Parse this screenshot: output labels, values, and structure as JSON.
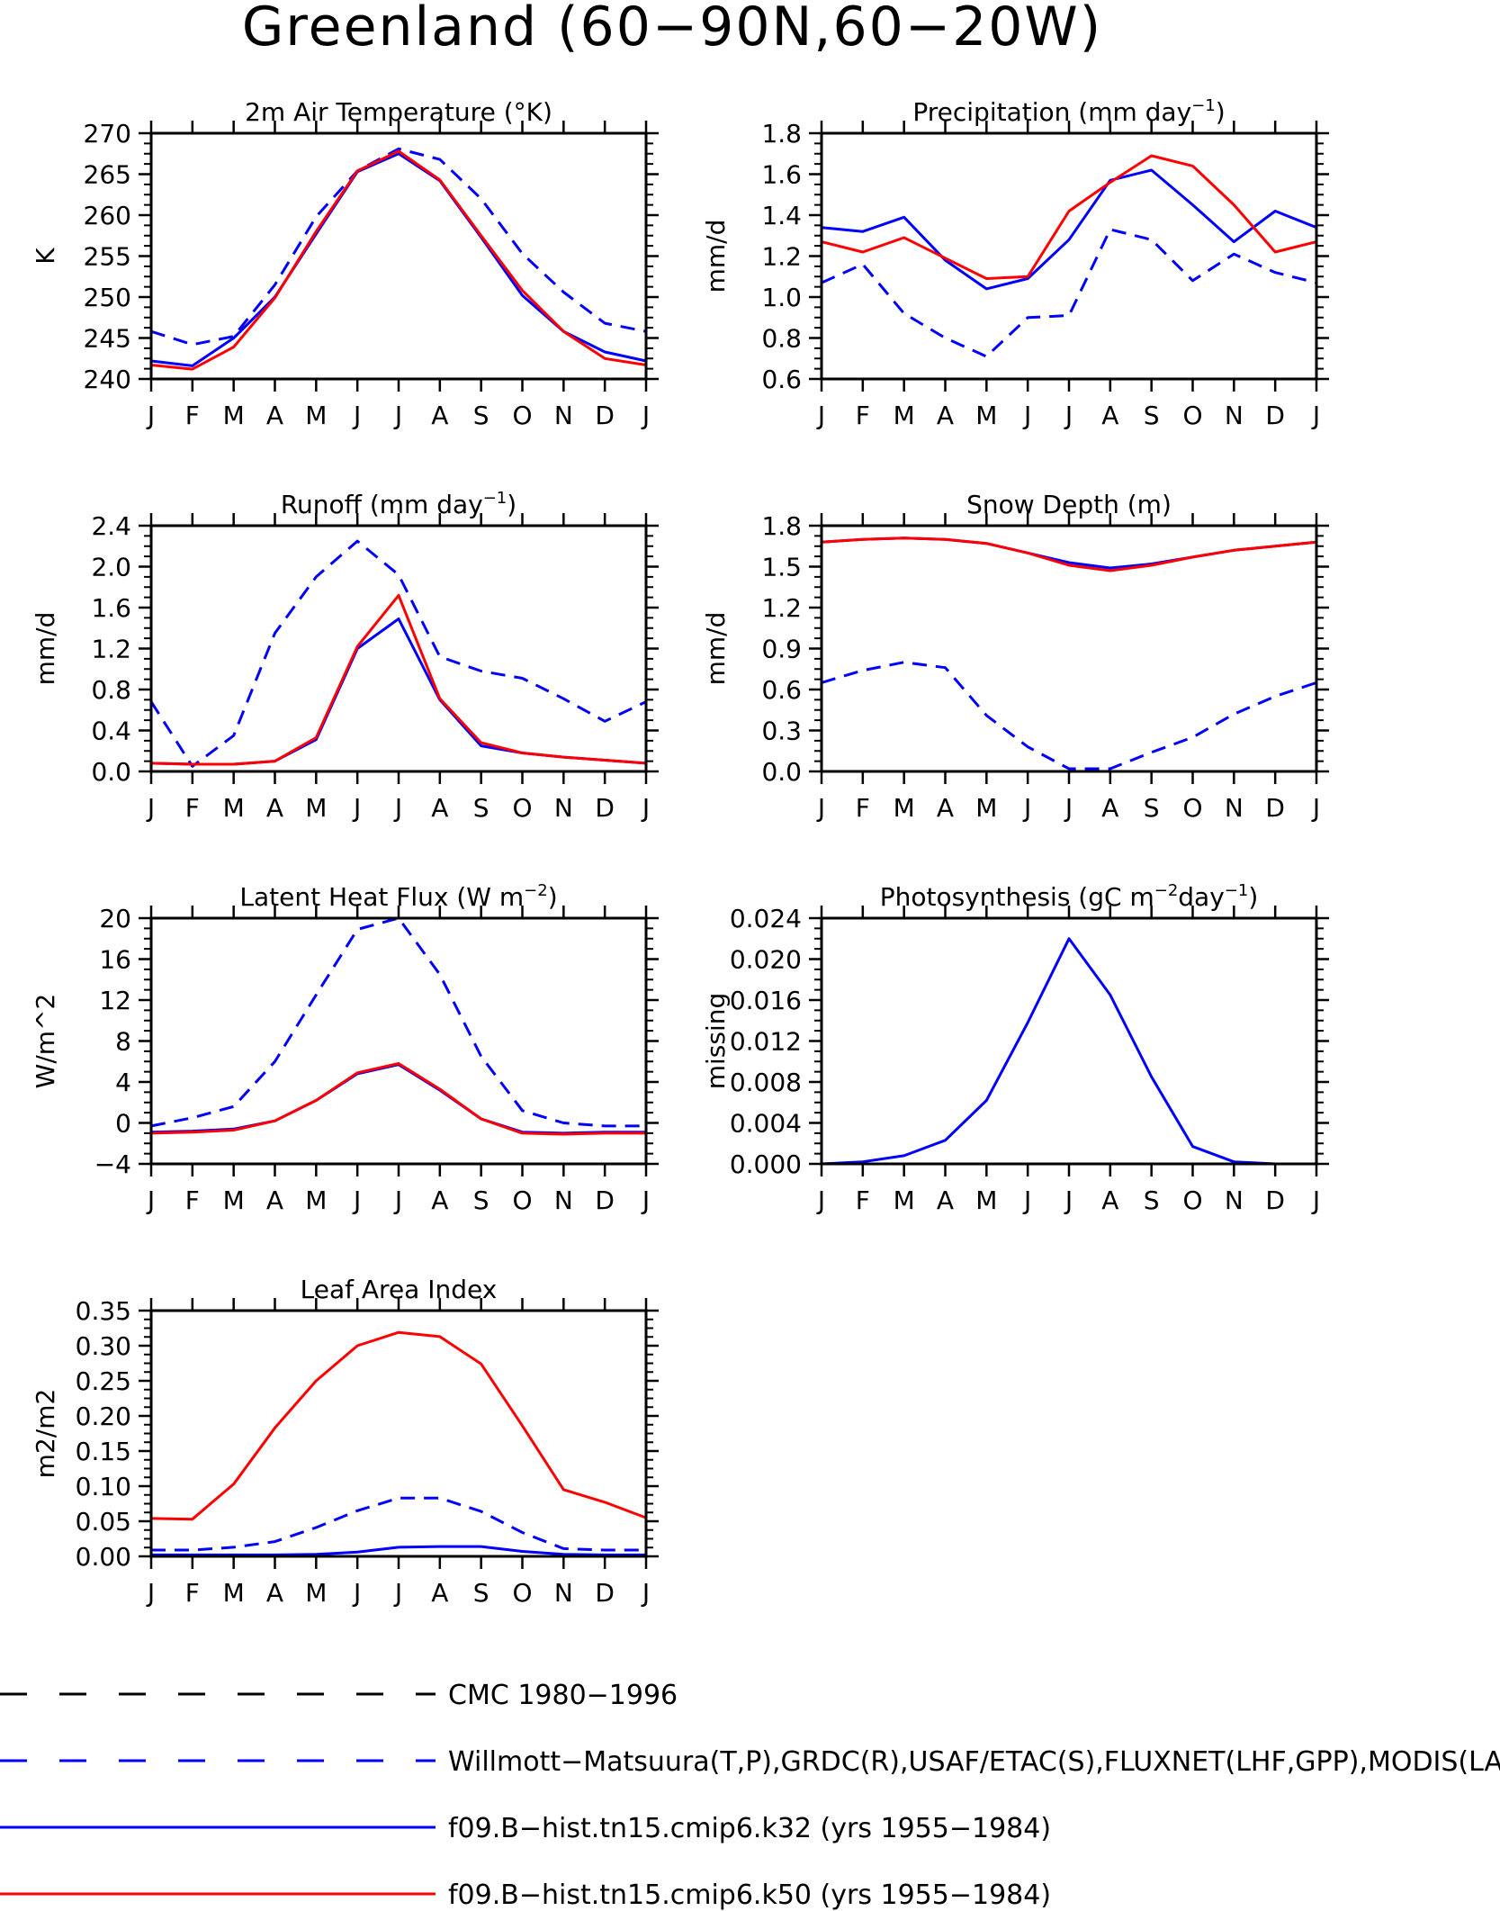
{
  "page_title": "Greenland (60−90N,60−20W)",
  "colors": {
    "obs_blue": "#0000ff",
    "model_k50": "#ff0000",
    "black": "#000000"
  },
  "month_labels": [
    "J",
    "F",
    "M",
    "A",
    "M",
    "J",
    "J",
    "A",
    "S",
    "O",
    "N",
    "D",
    "J"
  ],
  "chart_data": [
    {
      "id": "t2m",
      "type": "line",
      "title": "2m Air Temperature (°K)",
      "title_sup": "",
      "title_post": "",
      "ylabel": "K",
      "ylim": [
        240,
        270
      ],
      "yticks": [
        240,
        245,
        250,
        255,
        260,
        265,
        270
      ],
      "ytick_labels": [
        "240",
        "245",
        "250",
        "255",
        "260",
        "265",
        "270"
      ],
      "series": [
        {
          "name": "Willmott−Matsuura(T,P),GRDC(R),USAF/ETAC(S),FLUXNET(LHF,GPP),MODIS(LAI)",
          "style": "dashed",
          "color": "#0000ff",
          "values": [
            245.8,
            244.2,
            245.2,
            251.5,
            259.8,
            265.4,
            268.1,
            266.8,
            262.0,
            255.3,
            250.6,
            246.8,
            245.8
          ]
        },
        {
          "name": "f09.B−hist.tn15.cmip6.k32 (yrs 1955−1984)",
          "style": "solid",
          "color": "#0000ff",
          "values": [
            242.2,
            241.6,
            245.0,
            250.0,
            257.7,
            265.3,
            267.5,
            264.2,
            257.3,
            250.2,
            245.8,
            243.3,
            242.2
          ]
        },
        {
          "name": "f09.B−hist.tn15.cmip6.k50 (yrs 1955−1984)",
          "style": "solid",
          "color": "#ff0000",
          "values": [
            241.7,
            241.2,
            243.9,
            249.9,
            258.0,
            265.4,
            267.8,
            264.3,
            257.5,
            250.8,
            245.8,
            242.5,
            241.7
          ]
        }
      ]
    },
    {
      "id": "prec",
      "type": "line",
      "title": "Precipitation (mm day",
      "title_sup": "−1",
      "title_post": ")",
      "ylabel": "mm/d",
      "ylim": [
        0.6,
        1.8
      ],
      "yticks": [
        0.6,
        0.8,
        1.0,
        1.2,
        1.4,
        1.6,
        1.8
      ],
      "ytick_labels": [
        "0.6",
        "0.8",
        "1.0",
        "1.2",
        "1.4",
        "1.6",
        "1.8"
      ],
      "series": [
        {
          "name": "Willmott−Matsuura(T,P),GRDC(R),USAF/ETAC(S),FLUXNET(LHF,GPP),MODIS(LAI)",
          "style": "dashed",
          "color": "#0000ff",
          "values": [
            1.07,
            1.16,
            0.92,
            0.8,
            0.71,
            0.9,
            0.91,
            1.33,
            1.28,
            1.08,
            1.21,
            1.12,
            1.07
          ]
        },
        {
          "name": "f09.B−hist.tn15.cmip6.k32 (yrs 1955−1984)",
          "style": "solid",
          "color": "#0000ff",
          "values": [
            1.34,
            1.32,
            1.39,
            1.18,
            1.04,
            1.09,
            1.28,
            1.57,
            1.62,
            1.45,
            1.27,
            1.42,
            1.34
          ]
        },
        {
          "name": "f09.B−hist.tn15.cmip6.k50 (yrs 1955−1984)",
          "style": "solid",
          "color": "#ff0000",
          "values": [
            1.27,
            1.22,
            1.29,
            1.19,
            1.09,
            1.1,
            1.42,
            1.56,
            1.69,
            1.64,
            1.45,
            1.22,
            1.27
          ]
        }
      ]
    },
    {
      "id": "runoff",
      "type": "line",
      "title": "Runoff (mm day",
      "title_sup": "−1",
      "title_post": ")",
      "ylabel": "mm/d",
      "ylim": [
        0.0,
        2.4
      ],
      "yticks": [
        0.0,
        0.4,
        0.8,
        1.2,
        1.6,
        2.0,
        2.4
      ],
      "ytick_labels": [
        "0.0",
        "0.4",
        "0.8",
        "1.2",
        "1.6",
        "2.0",
        "2.4"
      ],
      "series": [
        {
          "name": "Willmott−Matsuura(T,P),GRDC(R),USAF/ETAC(S),FLUXNET(LHF,GPP),MODIS(LAI)",
          "style": "dashed",
          "color": "#0000ff",
          "values": [
            0.68,
            0.05,
            0.35,
            1.35,
            1.9,
            2.25,
            1.92,
            1.12,
            0.98,
            0.91,
            0.71,
            0.49,
            0.68
          ]
        },
        {
          "name": "f09.B−hist.tn15.cmip6.k32 (yrs 1955−1984)",
          "style": "solid",
          "color": "#0000ff",
          "values": [
            0.08,
            0.07,
            0.07,
            0.1,
            0.31,
            1.2,
            1.49,
            0.7,
            0.25,
            0.18,
            0.14,
            0.11,
            0.08
          ]
        },
        {
          "name": "f09.B−hist.tn15.cmip6.k50 (yrs 1955−1984)",
          "style": "solid",
          "color": "#ff0000",
          "values": [
            0.08,
            0.07,
            0.07,
            0.1,
            0.33,
            1.22,
            1.72,
            0.71,
            0.28,
            0.18,
            0.14,
            0.11,
            0.08
          ]
        }
      ]
    },
    {
      "id": "snow",
      "type": "line",
      "title": "Snow Depth (m)",
      "title_sup": "",
      "title_post": "",
      "ylabel": "mm/d",
      "ylim": [
        0.0,
        1.8
      ],
      "yticks": [
        0.0,
        0.3,
        0.6,
        0.9,
        1.2,
        1.5,
        1.8
      ],
      "ytick_labels": [
        "0.0",
        "0.3",
        "0.6",
        "0.9",
        "1.2",
        "1.5",
        "1.8"
      ],
      "series": [
        {
          "name": "CMC 1980−1996",
          "style": "dashed",
          "color": "#000000",
          "values": [
            0.0,
            0.0,
            0.0,
            0.0,
            0.0,
            0.0,
            0.0,
            0.0,
            0.0,
            0.0,
            0.0,
            0.0,
            0.0
          ]
        },
        {
          "name": "Willmott−Matsuura(T,P),GRDC(R),USAF/ETAC(S),FLUXNET(LHF,GPP),MODIS(LAI)",
          "style": "dashed",
          "color": "#0000ff",
          "values": [
            0.65,
            0.74,
            0.8,
            0.76,
            0.41,
            0.18,
            0.02,
            0.02,
            0.14,
            0.25,
            0.42,
            0.55,
            0.65
          ]
        },
        {
          "name": "f09.B−hist.tn15.cmip6.k32 (yrs 1955−1984)",
          "style": "solid",
          "color": "#0000ff",
          "values": [
            1.68,
            1.7,
            1.71,
            1.7,
            1.67,
            1.6,
            1.53,
            1.49,
            1.52,
            1.57,
            1.62,
            1.65,
            1.68
          ]
        },
        {
          "name": "f09.B−hist.tn15.cmip6.k50 (yrs 1955−1984)",
          "style": "solid",
          "color": "#ff0000",
          "values": [
            1.68,
            1.7,
            1.71,
            1.7,
            1.67,
            1.6,
            1.51,
            1.47,
            1.51,
            1.57,
            1.62,
            1.65,
            1.68
          ]
        }
      ]
    },
    {
      "id": "lhf",
      "type": "line",
      "title": "Latent Heat Flux (W m",
      "title_sup": "−2",
      "title_post": ")",
      "ylabel": "W/m^2",
      "ylim": [
        -4,
        20
      ],
      "yticks": [
        -4,
        0,
        4,
        8,
        12,
        16,
        20
      ],
      "ytick_labels": [
        "−4",
        "0",
        "4",
        "8",
        "12",
        "16",
        "20"
      ],
      "series": [
        {
          "name": "Willmott−Matsuura(T,P),GRDC(R),USAF/ETAC(S),FLUXNET(LHF,GPP),MODIS(LAI)",
          "style": "dashed",
          "color": "#0000ff",
          "values": [
            -0.3,
            0.5,
            1.6,
            6.0,
            12.5,
            18.9,
            20.0,
            14.5,
            6.5,
            1.2,
            0.0,
            -0.3,
            -0.3
          ]
        },
        {
          "name": "f09.B−hist.tn15.cmip6.k32 (yrs 1955−1984)",
          "style": "solid",
          "color": "#0000ff",
          "values": [
            -0.9,
            -0.8,
            -0.6,
            0.2,
            2.2,
            4.8,
            5.7,
            3.2,
            0.4,
            -0.9,
            -1.0,
            -0.9,
            -0.9
          ]
        },
        {
          "name": "f09.B−hist.tn15.cmip6.k50 (yrs 1955−1984)",
          "style": "solid",
          "color": "#ff0000",
          "values": [
            -1.0,
            -0.9,
            -0.7,
            0.2,
            2.2,
            4.9,
            5.8,
            3.3,
            0.4,
            -1.0,
            -1.1,
            -1.0,
            -1.0
          ]
        }
      ]
    },
    {
      "id": "gpp",
      "type": "line",
      "title": "Photosynthesis (gC m",
      "title_sup": "−2",
      "title_post": "day",
      "title_sup2": "−1",
      "title_post2": ")",
      "ylabel": "missing",
      "ylim": [
        0.0,
        0.024
      ],
      "yticks": [
        0.0,
        0.004,
        0.008,
        0.012,
        0.016,
        0.02,
        0.024
      ],
      "ytick_labels": [
        "0.000",
        "0.004",
        "0.008",
        "0.012",
        "0.016",
        "0.020",
        "0.024"
      ],
      "series": [
        {
          "name": "f09.B−hist.tn15.cmip6.k32 (yrs 1955−1984)",
          "style": "solid",
          "color": "#0000ff",
          "values": [
            0.0,
            0.0002,
            0.0008,
            0.0023,
            0.0062,
            0.0138,
            0.022,
            0.0165,
            0.0085,
            0.0017,
            0.0002,
            0.0,
            0.0
          ]
        }
      ]
    },
    {
      "id": "lai",
      "type": "line",
      "title": "Leaf Area Index",
      "title_sup": "",
      "title_post": "",
      "ylabel": "m2/m2",
      "ylim": [
        0.0,
        0.35
      ],
      "yticks": [
        0.0,
        0.05,
        0.1,
        0.15,
        0.2,
        0.25,
        0.3,
        0.35
      ],
      "ytick_labels": [
        "0.00",
        "0.05",
        "0.10",
        "0.15",
        "0.20",
        "0.25",
        "0.30",
        "0.35"
      ],
      "series": [
        {
          "name": "Willmott−Matsuura(T,P),GRDC(R),USAF/ETAC(S),FLUXNET(LHF,GPP),MODIS(LAI)",
          "style": "dashed",
          "color": "#0000ff",
          "values": [
            0.009,
            0.009,
            0.013,
            0.021,
            0.041,
            0.065,
            0.083,
            0.083,
            0.064,
            0.034,
            0.011,
            0.009,
            0.009
          ]
        },
        {
          "name": "f09.B−hist.tn15.cmip6.k32 (yrs 1955−1984)",
          "style": "solid",
          "color": "#0000ff",
          "values": [
            0.002,
            0.002,
            0.002,
            0.002,
            0.003,
            0.006,
            0.013,
            0.014,
            0.014,
            0.007,
            0.003,
            0.002,
            0.002
          ]
        },
        {
          "name": "f09.B−hist.tn15.cmip6.k50 (yrs 1955−1984)",
          "style": "solid",
          "color": "#ff0000",
          "values": [
            0.054,
            0.053,
            0.103,
            0.183,
            0.25,
            0.3,
            0.319,
            0.313,
            0.274,
            0.186,
            0.095,
            0.077,
            0.055
          ]
        }
      ]
    }
  ],
  "legend": [
    {
      "label": "CMC 1980−1996",
      "style": "dashed",
      "color": "#000000"
    },
    {
      "label": "Willmott−Matsuura(T,P),GRDC(R),USAF/ETAC(S),FLUXNET(LHF,GPP),MODIS(LAI)",
      "style": "dashed",
      "color": "#0000ff"
    },
    {
      "label": "f09.B−hist.tn15.cmip6.k32 (yrs 1955−1984)",
      "style": "solid",
      "color": "#0000ff"
    },
    {
      "label": "f09.B−hist.tn15.cmip6.k50 (yrs 1955−1984)",
      "style": "solid",
      "color": "#ff0000"
    }
  ]
}
